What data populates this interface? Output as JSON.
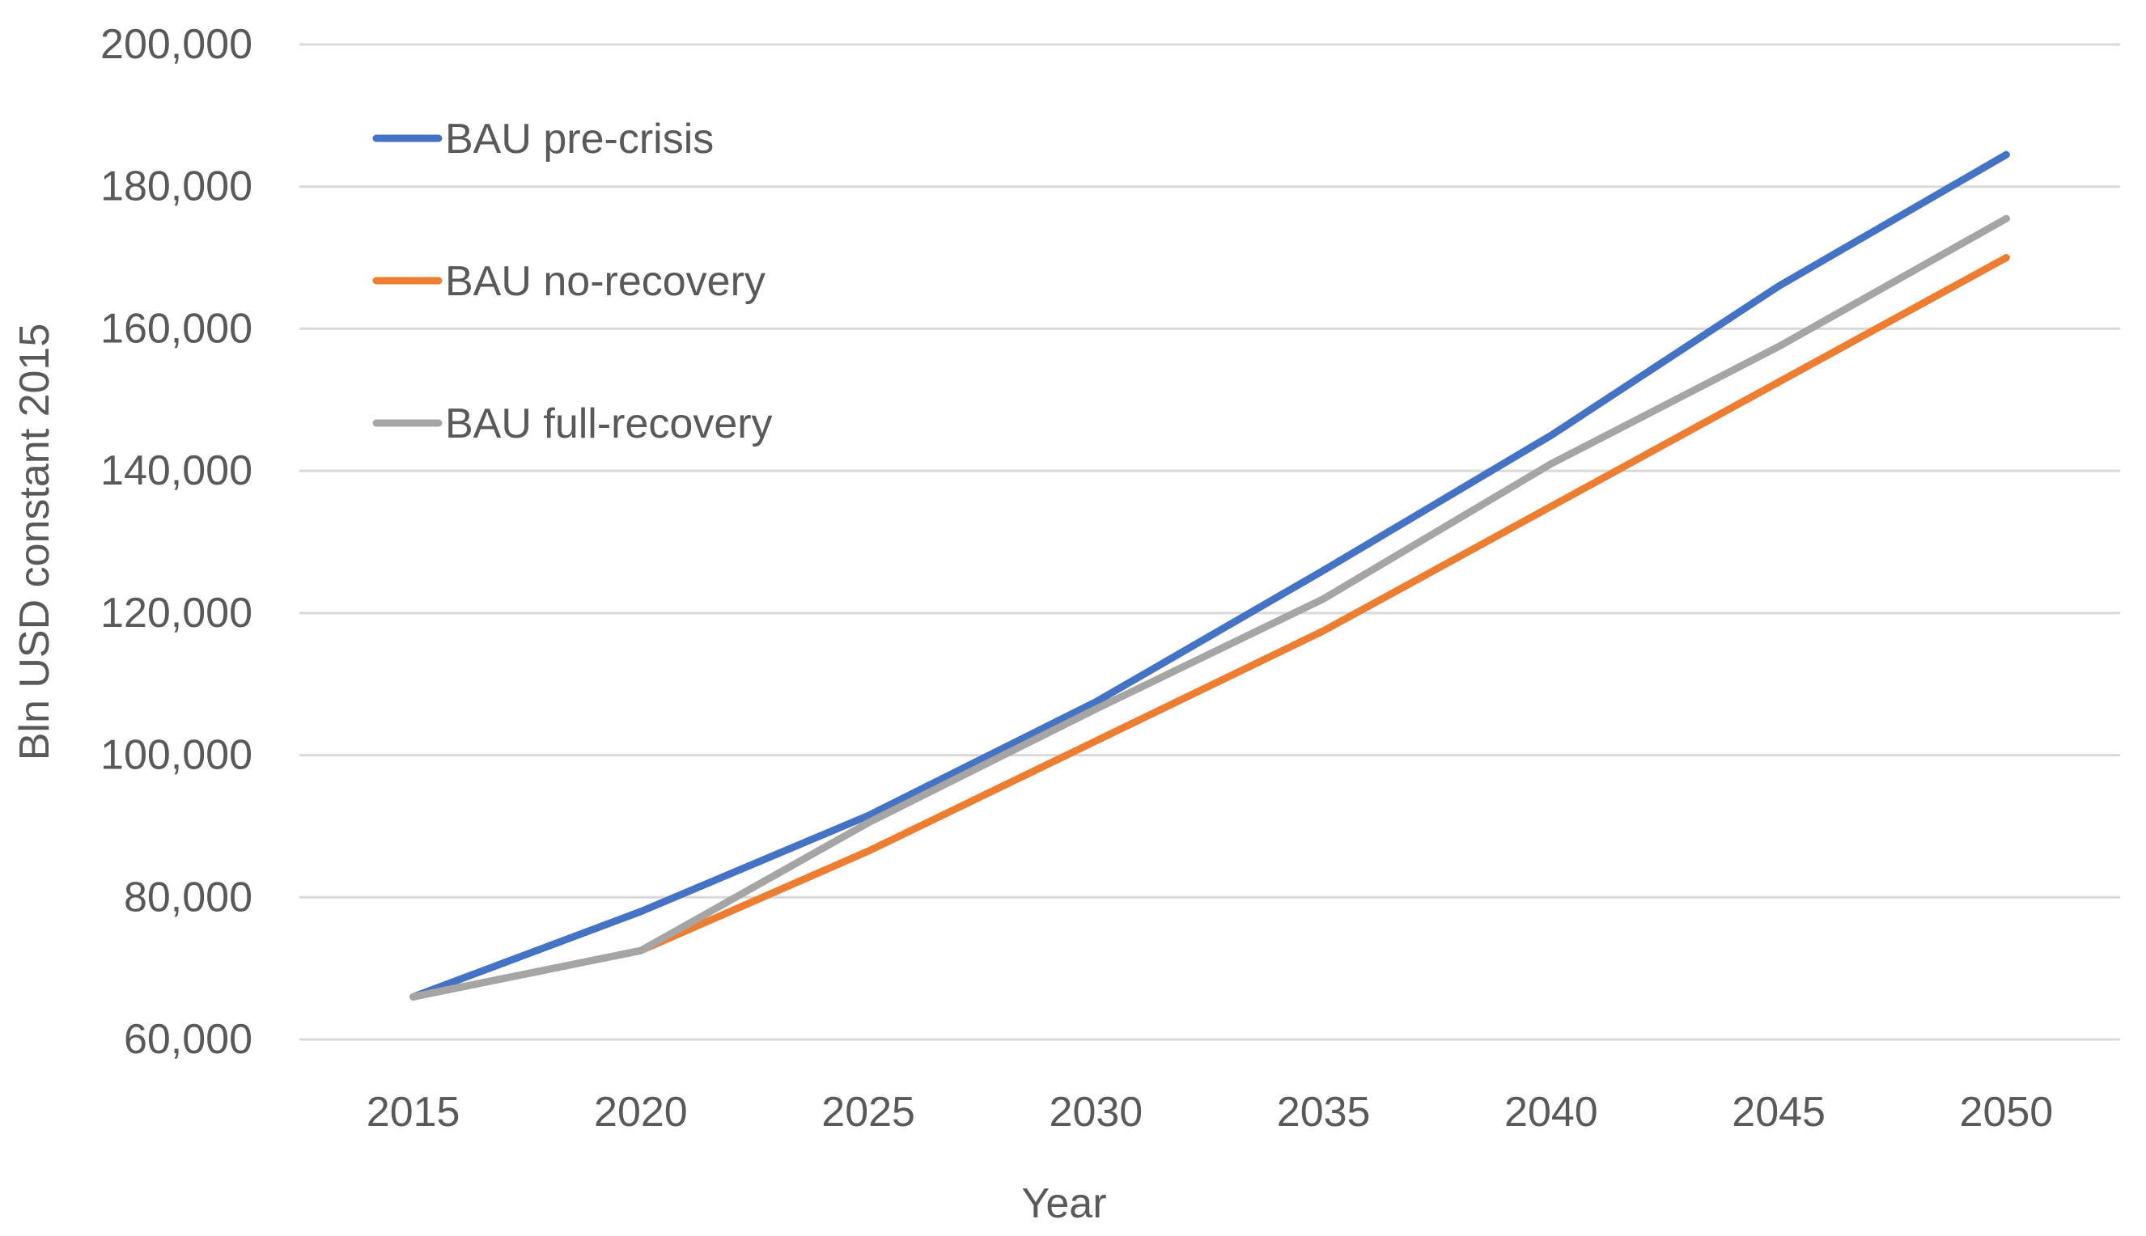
{
  "chart_data": {
    "type": "line",
    "title": "",
    "xlabel": "Year",
    "ylabel": "Bln USD constant 2015",
    "x": [
      "2015",
      "2020",
      "2025",
      "2030",
      "2035",
      "2040",
      "2045",
      "2050"
    ],
    "series": [
      {
        "name": "BAU pre-crisis",
        "color": "#4472C4",
        "values": [
          66000,
          78000,
          91500,
          107500,
          126000,
          145000,
          166000,
          184500
        ]
      },
      {
        "name": "BAU no-recovery",
        "color": "#ED7D31",
        "values": [
          66000,
          72500,
          86500,
          102000,
          117500,
          135000,
          152500,
          170000
        ]
      },
      {
        "name": "BAU full-recovery",
        "color": "#A5A5A5",
        "values": [
          66000,
          72500,
          90500,
          106500,
          122000,
          141000,
          157500,
          175500
        ]
      }
    ],
    "ylim": [
      60000,
      200000
    ],
    "ytick_step": 20000,
    "ytick_labels": [
      "60,000",
      "80,000",
      "100,000",
      "120,000",
      "140,000",
      "160,000",
      "180,000",
      "200,000"
    ],
    "grid": true,
    "legend_position": "inside-top-left",
    "gridline_color": "#D9D9D9",
    "text_color": "#595959",
    "background_color": "#FFFFFF"
  }
}
